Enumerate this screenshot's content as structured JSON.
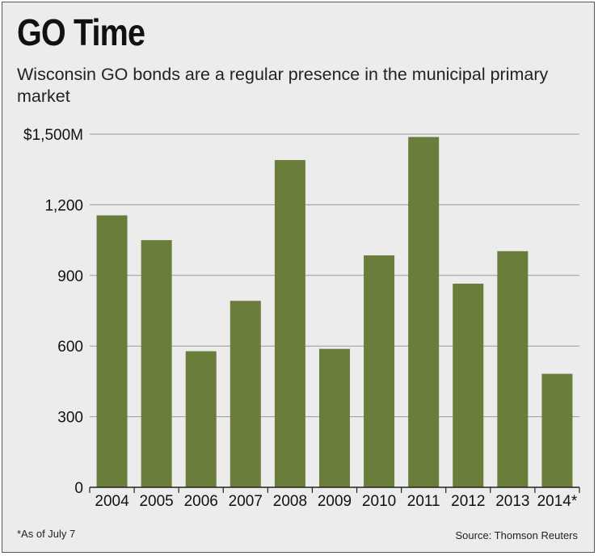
{
  "header": {
    "title": "GO Time",
    "subtitle": "Wisconsin GO bonds are a regular presence in the municipal primary market"
  },
  "footer": {
    "note": "*As of July 7",
    "source": "Source: Thomson Reuters"
  },
  "colors": {
    "bar": "#6b7d3b",
    "background": "#ececec",
    "gridline": "#9a9a9a",
    "axis": "#222222"
  },
  "chart_data": {
    "type": "bar",
    "title": "GO Time",
    "subtitle": "Wisconsin GO bonds are a regular presence in the municipal primary market",
    "categories": [
      "2004",
      "2005",
      "2006",
      "2007",
      "2008",
      "2009",
      "2010",
      "2011",
      "2012",
      "2013",
      "2014*"
    ],
    "values": [
      1155,
      1050,
      578,
      792,
      1390,
      588,
      985,
      1488,
      865,
      1003,
      482
    ],
    "ylim": [
      0,
      1500
    ],
    "yticks": [
      0,
      300,
      600,
      900,
      1200,
      1500
    ],
    "ytick_labels": [
      "0",
      "300",
      "600",
      "900",
      "1,200",
      "$1,500M"
    ],
    "xlabel": "",
    "ylabel": "",
    "grid": true,
    "legend": "none"
  }
}
